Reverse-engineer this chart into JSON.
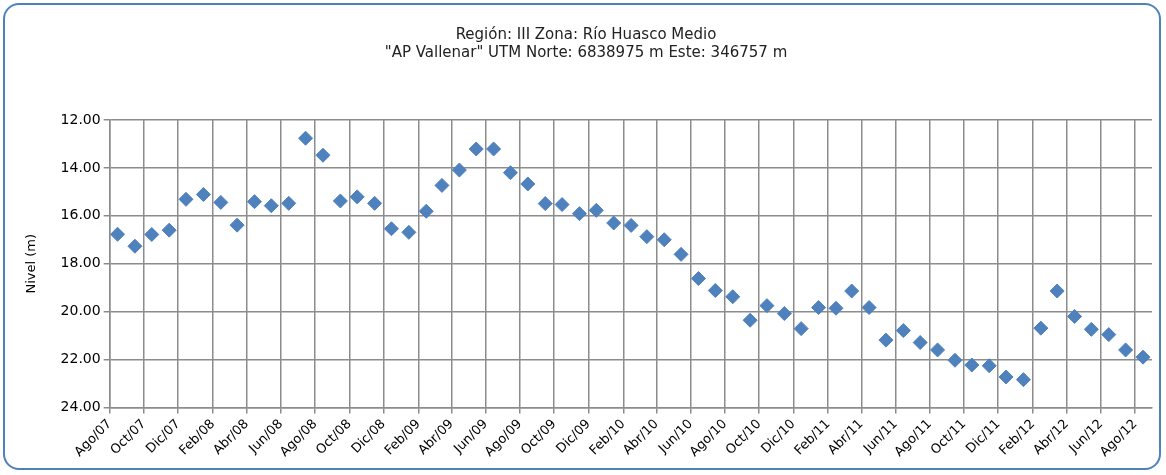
{
  "chart_data": {
    "type": "scatter",
    "title": [
      "Región: III Zona: Río Huasco Medio",
      "\"AP Vallenar\" UTM Norte: 6838975 m Este: 346757 m"
    ],
    "ylabel": "Nivel (m)",
    "x": [
      "2007-08-15",
      "2007-09-15",
      "2007-10-15",
      "2007-11-15",
      "2007-12-15",
      "2008-01-15",
      "2008-02-15",
      "2008-03-15",
      "2008-04-15",
      "2008-05-15",
      "2008-06-15",
      "2008-07-15",
      "2008-08-15",
      "2008-09-15",
      "2008-10-15",
      "2008-11-15",
      "2008-12-15",
      "2009-01-15",
      "2009-02-15",
      "2009-03-15",
      "2009-04-15",
      "2009-05-15",
      "2009-06-15",
      "2009-07-15",
      "2009-08-15",
      "2009-09-15",
      "2009-10-15",
      "2009-11-15",
      "2009-12-15",
      "2010-01-15",
      "2010-02-15",
      "2010-03-15",
      "2010-04-15",
      "2010-05-15",
      "2010-06-15",
      "2010-07-15",
      "2010-08-15",
      "2010-09-15",
      "2010-10-15",
      "2010-11-15",
      "2010-12-15",
      "2011-01-15",
      "2011-02-15",
      "2011-03-15",
      "2011-04-15",
      "2011-05-15",
      "2011-06-15",
      "2011-07-15",
      "2011-08-15",
      "2011-09-15",
      "2011-10-15",
      "2011-11-15",
      "2011-12-15",
      "2012-01-15",
      "2012-02-15",
      "2012-03-15",
      "2012-04-15",
      "2012-05-15",
      "2012-06-15",
      "2012-07-15",
      "2012-08-15"
    ],
    "series": [
      {
        "color": "#4f81bd",
        "values": [
          16.77,
          17.27,
          16.78,
          16.6,
          15.31,
          15.11,
          15.44,
          16.39,
          15.41,
          15.58,
          15.48,
          12.76,
          13.47,
          15.38,
          15.21,
          15.48,
          16.54,
          16.69,
          15.81,
          14.73,
          14.09,
          13.21,
          13.21,
          14.2,
          14.67,
          15.49,
          15.53,
          15.91,
          15.77,
          16.3,
          16.4,
          16.87,
          17.0,
          17.61,
          18.62,
          19.12,
          19.38,
          20.36,
          19.75,
          20.08,
          20.71,
          19.83,
          19.86,
          19.14,
          19.83,
          21.19,
          20.79,
          21.29,
          21.6,
          22.03,
          22.23,
          22.26,
          22.73,
          22.84,
          20.69,
          19.14,
          20.2,
          20.74,
          20.96,
          21.6,
          21.9
        ]
      }
    ],
    "xlim": [
      "2007-08-01",
      "2012-08-31"
    ],
    "xticks": [
      {
        "value": "2007-08-01",
        "label": "Ago/07"
      },
      {
        "value": "2007-10-01",
        "label": "Oct/07"
      },
      {
        "value": "2007-12-01",
        "label": "Dic/07"
      },
      {
        "value": "2008-02-01",
        "label": "Feb/08"
      },
      {
        "value": "2008-04-01",
        "label": "Abr/08"
      },
      {
        "value": "2008-06-01",
        "label": "Jun/08"
      },
      {
        "value": "2008-08-01",
        "label": "Ago/08"
      },
      {
        "value": "2008-10-01",
        "label": "Oct/08"
      },
      {
        "value": "2008-12-01",
        "label": "Dic/08"
      },
      {
        "value": "2009-02-01",
        "label": "Feb/09"
      },
      {
        "value": "2009-04-01",
        "label": "Abr/09"
      },
      {
        "value": "2009-06-01",
        "label": "Jun/09"
      },
      {
        "value": "2009-08-01",
        "label": "Ago/09"
      },
      {
        "value": "2009-10-01",
        "label": "Oct/09"
      },
      {
        "value": "2009-12-01",
        "label": "Dic/09"
      },
      {
        "value": "2010-02-01",
        "label": "Feb/10"
      },
      {
        "value": "2010-04-01",
        "label": "Abr/10"
      },
      {
        "value": "2010-06-01",
        "label": "Jun/10"
      },
      {
        "value": "2010-08-01",
        "label": "Ago/10"
      },
      {
        "value": "2010-10-01",
        "label": "Oct/10"
      },
      {
        "value": "2010-12-01",
        "label": "Dic/10"
      },
      {
        "value": "2011-02-01",
        "label": "Feb/11"
      },
      {
        "value": "2011-04-01",
        "label": "Abr/11"
      },
      {
        "value": "2011-06-01",
        "label": "Jun/11"
      },
      {
        "value": "2011-08-01",
        "label": "Ago/11"
      },
      {
        "value": "2011-10-01",
        "label": "Oct/11"
      },
      {
        "value": "2011-12-01",
        "label": "Dic/11"
      },
      {
        "value": "2012-02-01",
        "label": "Feb/12"
      },
      {
        "value": "2012-04-01",
        "label": "Abr/12"
      },
      {
        "value": "2012-06-01",
        "label": "Jun/12"
      },
      {
        "value": "2012-08-01",
        "label": "Ago/12"
      }
    ],
    "ylim": [
      24,
      12
    ],
    "yticks": [
      {
        "value": 12,
        "label": "12.00"
      },
      {
        "value": 14,
        "label": "14.00"
      },
      {
        "value": 16,
        "label": "16.00"
      },
      {
        "value": 18,
        "label": "18.00"
      },
      {
        "value": 20,
        "label": "20.00"
      },
      {
        "value": 22,
        "label": "22.00"
      },
      {
        "value": 24,
        "label": "24.00"
      }
    ],
    "grid": true,
    "marker": "diamond",
    "legend": false
  }
}
